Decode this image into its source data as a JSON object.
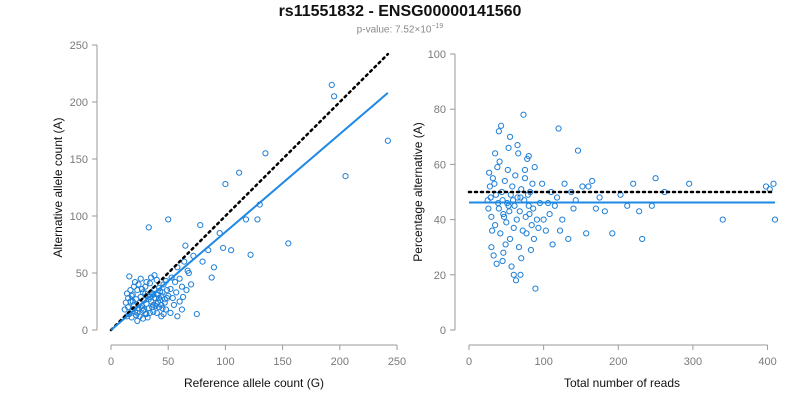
{
  "title": "rs11551832 - ENSG00000141560",
  "subtitle": {
    "prefix": "p-value: 7.52×10",
    "exponent": "−19"
  },
  "colors": {
    "points": "#1e7fd6",
    "fit_line": "#1e88e5",
    "reference_line": "#000000",
    "axis": "#9a9a9a"
  },
  "chart_data": [
    {
      "type": "scatter",
      "xlabel": "Reference allele count (G)",
      "ylabel": "Alternative allele count (A)",
      "xlim": [
        0,
        250
      ],
      "ylim": [
        0,
        250
      ],
      "xticks": [
        0,
        50,
        100,
        150,
        200,
        250
      ],
      "yticks": [
        0,
        50,
        100,
        150,
        200,
        250
      ],
      "grid": false,
      "points": [
        [
          14,
          12
        ],
        [
          15,
          20
        ],
        [
          16,
          14
        ],
        [
          17,
          25
        ],
        [
          18,
          11
        ],
        [
          18,
          30
        ],
        [
          19,
          18
        ],
        [
          20,
          22
        ],
        [
          21,
          16
        ],
        [
          22,
          13
        ],
        [
          22,
          27
        ],
        [
          23,
          35
        ],
        [
          24,
          19
        ],
        [
          25,
          24
        ],
        [
          25,
          12
        ],
        [
          26,
          29
        ],
        [
          27,
          21
        ],
        [
          28,
          17
        ],
        [
          28,
          33
        ],
        [
          29,
          26
        ],
        [
          30,
          14
        ],
        [
          30,
          38
        ],
        [
          31,
          23
        ],
        [
          32,
          30
        ],
        [
          33,
          19
        ],
        [
          33,
          27
        ],
        [
          34,
          41
        ],
        [
          35,
          25
        ],
        [
          36,
          32
        ],
        [
          37,
          22
        ],
        [
          37,
          16
        ],
        [
          38,
          36
        ],
        [
          39,
          28
        ],
        [
          40,
          44
        ],
        [
          41,
          31
        ],
        [
          42,
          20
        ],
        [
          42,
          37
        ],
        [
          43,
          26
        ],
        [
          44,
          12
        ],
        [
          45,
          33
        ],
        [
          46,
          40
        ],
        [
          47,
          27
        ],
        [
          48,
          18
        ],
        [
          49,
          35
        ],
        [
          50,
          30
        ],
        [
          16,
          47
        ],
        [
          20,
          38
        ],
        [
          12,
          18
        ],
        [
          13,
          24
        ],
        [
          19,
          31
        ],
        [
          24,
          40
        ],
        [
          27,
          36
        ],
        [
          29,
          18
        ],
        [
          31,
          42
        ],
        [
          34,
          15
        ],
        [
          36,
          20
        ],
        [
          38,
          48
        ],
        [
          40,
          15
        ],
        [
          44,
          22
        ],
        [
          46,
          14
        ],
        [
          48,
          43
        ],
        [
          52,
          36
        ],
        [
          54,
          28
        ],
        [
          56,
          42
        ],
        [
          58,
          55
        ],
        [
          60,
          45
        ],
        [
          62,
          38
        ],
        [
          64,
          60
        ],
        [
          66,
          35
        ],
        [
          68,
          50
        ],
        [
          50,
          97
        ],
        [
          65,
          74
        ],
        [
          72,
          65
        ],
        [
          78,
          92
        ],
        [
          85,
          70
        ],
        [
          95,
          85
        ],
        [
          112,
          138
        ],
        [
          122,
          66
        ],
        [
          128,
          97
        ],
        [
          135,
          155
        ],
        [
          155,
          76
        ],
        [
          193,
          215
        ],
        [
          195,
          205
        ],
        [
          205,
          135
        ],
        [
          242,
          166
        ],
        [
          33,
          90
        ],
        [
          75,
          14
        ],
        [
          88,
          46
        ],
        [
          100,
          128
        ],
        [
          118,
          97
        ],
        [
          52,
          15
        ],
        [
          55,
          22
        ],
        [
          58,
          12
        ],
        [
          60,
          25
        ],
        [
          62,
          18
        ],
        [
          15,
          28
        ],
        [
          17,
          35
        ],
        [
          21,
          42
        ],
        [
          23,
          8
        ],
        [
          26,
          45
        ],
        [
          28,
          10
        ],
        [
          30,
          32
        ],
        [
          32,
          11
        ],
        [
          35,
          46
        ],
        [
          39,
          21
        ],
        [
          41,
          25
        ],
        [
          43,
          34
        ],
        [
          45,
          19
        ],
        [
          47,
          24
        ],
        [
          49,
          28
        ],
        [
          14,
          32
        ],
        [
          19,
          25
        ],
        [
          23,
          15
        ],
        [
          27,
          19
        ],
        [
          31,
          14
        ],
        [
          34,
          29
        ],
        [
          37,
          31
        ],
        [
          40,
          23
        ],
        [
          42,
          28
        ],
        [
          44,
          30
        ],
        [
          53,
          46
        ],
        [
          57,
          33
        ],
        [
          63,
          29
        ],
        [
          67,
          52
        ],
        [
          70,
          40
        ],
        [
          80,
          60
        ],
        [
          90,
          55
        ],
        [
          98,
          72
        ],
        [
          105,
          70
        ],
        [
          130,
          110
        ]
      ],
      "fit_line": {
        "x": [
          0,
          242
        ],
        "y": [
          0,
          208
        ]
      },
      "reference_line": {
        "x": [
          0,
          242
        ],
        "y": [
          0,
          242
        ]
      }
    },
    {
      "type": "scatter",
      "xlabel": "Total number of reads",
      "ylabel": "Percentage alternative (A)",
      "xlim": [
        0,
        410
      ],
      "ylim": [
        0,
        100
      ],
      "xticks": [
        0,
        100,
        200,
        300,
        400
      ],
      "yticks": [
        0,
        20,
        40,
        60,
        80,
        100
      ],
      "grid": false,
      "points": [
        [
          25,
          47
        ],
        [
          28,
          52
        ],
        [
          30,
          41
        ],
        [
          32,
          55
        ],
        [
          35,
          38
        ],
        [
          36,
          49
        ],
        [
          38,
          59
        ],
        [
          40,
          44
        ],
        [
          41,
          61
        ],
        [
          42,
          35
        ],
        [
          44,
          50
        ],
        [
          45,
          47
        ],
        [
          46,
          42
        ],
        [
          48,
          54
        ],
        [
          50,
          39
        ],
        [
          51,
          46
        ],
        [
          52,
          58
        ],
        [
          54,
          43
        ],
        [
          55,
          33
        ],
        [
          56,
          49
        ],
        [
          58,
          52
        ],
        [
          60,
          37
        ],
        [
          61,
          45
        ],
        [
          62,
          56
        ],
        [
          64,
          40
        ],
        [
          65,
          48
        ],
        [
          66,
          64
        ],
        [
          68,
          43
        ],
        [
          70,
          51
        ],
        [
          72,
          36
        ],
        [
          74,
          47
        ],
        [
          75,
          55
        ],
        [
          76,
          41
        ],
        [
          78,
          62
        ],
        [
          80,
          45
        ],
        [
          82,
          50
        ],
        [
          84,
          38
        ],
        [
          85,
          53
        ],
        [
          86,
          44
        ],
        [
          88,
          59
        ],
        [
          30,
          30
        ],
        [
          33,
          27
        ],
        [
          37,
          24
        ],
        [
          40,
          72
        ],
        [
          43,
          74
        ],
        [
          46,
          28
        ],
        [
          49,
          31
        ],
        [
          53,
          66
        ],
        [
          57,
          23
        ],
        [
          60,
          20
        ],
        [
          63,
          18
        ],
        [
          67,
          30
        ],
        [
          70,
          26
        ],
        [
          73,
          78
        ],
        [
          77,
          35
        ],
        [
          80,
          63
        ],
        [
          83,
          29
        ],
        [
          87,
          33
        ],
        [
          89,
          15
        ],
        [
          91,
          40
        ],
        [
          95,
          46
        ],
        [
          98,
          53
        ],
        [
          100,
          40
        ],
        [
          103,
          36
        ],
        [
          106,
          46
        ],
        [
          110,
          50
        ],
        [
          112,
          31
        ],
        [
          115,
          45
        ],
        [
          120,
          73
        ],
        [
          122,
          36
        ],
        [
          128,
          53
        ],
        [
          133,
          33
        ],
        [
          137,
          50
        ],
        [
          143,
          47
        ],
        [
          146,
          65
        ],
        [
          152,
          52
        ],
        [
          157,
          35
        ],
        [
          165,
          54
        ],
        [
          170,
          44
        ],
        [
          182,
          43
        ],
        [
          192,
          35
        ],
        [
          203,
          49
        ],
        [
          212,
          45
        ],
        [
          220,
          53
        ],
        [
          228,
          43
        ],
        [
          232,
          33
        ],
        [
          245,
          45
        ],
        [
          250,
          55
        ],
        [
          262,
          50
        ],
        [
          295,
          53
        ],
        [
          340,
          40
        ],
        [
          398,
          52
        ],
        [
          403,
          51
        ],
        [
          408,
          53
        ],
        [
          410,
          40
        ],
        [
          26,
          44
        ],
        [
          29,
          48
        ],
        [
          34,
          53
        ],
        [
          39,
          46
        ],
        [
          47,
          41
        ],
        [
          53,
          45
        ],
        [
          59,
          47
        ],
        [
          69,
          48
        ],
        [
          79,
          49
        ],
        [
          27,
          57
        ],
        [
          31,
          36
        ],
        [
          35,
          64
        ],
        [
          45,
          25
        ],
        [
          55,
          70
        ],
        [
          65,
          67
        ],
        [
          69,
          20
        ],
        [
          75,
          58
        ],
        [
          81,
          42
        ],
        [
          93,
          37
        ],
        [
          108,
          42
        ],
        [
          118,
          48
        ],
        [
          125,
          40
        ],
        [
          140,
          44
        ],
        [
          160,
          52
        ],
        [
          175,
          48
        ]
      ],
      "fit_line": {
        "x": [
          0,
          410
        ],
        "y": [
          46.2,
          46.2
        ]
      },
      "reference_line": {
        "x": [
          0,
          410
        ],
        "y": [
          50,
          50
        ]
      }
    }
  ]
}
